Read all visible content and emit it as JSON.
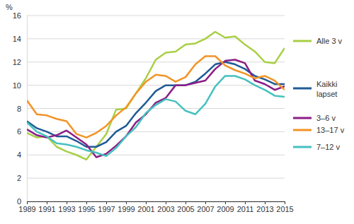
{
  "chart_data": {
    "type": "line",
    "y_label": "%",
    "x": [
      1989,
      1990,
      1991,
      1992,
      1993,
      1994,
      1995,
      1996,
      1997,
      1998,
      1999,
      2000,
      2001,
      2002,
      2003,
      2004,
      2005,
      2006,
      2007,
      2008,
      2009,
      2010,
      2011,
      2012,
      2013,
      2014,
      2015
    ],
    "xlim": [
      1989,
      2015
    ],
    "xticks": [
      1989,
      1991,
      1993,
      1995,
      1997,
      1999,
      2001,
      2003,
      2005,
      2007,
      2009,
      2011,
      2013,
      2015
    ],
    "ylim": [
      0,
      16
    ],
    "yticks": [
      0,
      2,
      4,
      6,
      8,
      10,
      12,
      14,
      16
    ],
    "grid": true,
    "legend": "right",
    "series": [
      {
        "name": "Alle 3 v",
        "color": "#a8cf45",
        "values": [
          5.9,
          5.5,
          5.6,
          4.7,
          4.3,
          4.0,
          3.6,
          4.7,
          5.8,
          7.9,
          8.0,
          9.3,
          10.6,
          12.2,
          12.8,
          12.9,
          13.5,
          13.6,
          14.0,
          14.6,
          14.1,
          14.2,
          13.5,
          12.9,
          12.0,
          11.9,
          13.2
        ]
      },
      {
        "name": "Kaikki lapset",
        "color": "#1f5a96",
        "values": [
          6.9,
          6.3,
          6.0,
          5.6,
          5.6,
          5.2,
          4.7,
          4.7,
          5.1,
          6.0,
          6.5,
          7.6,
          8.5,
          9.5,
          10.0,
          10.0,
          10.0,
          10.3,
          11.0,
          11.8,
          12.0,
          11.8,
          11.4,
          10.8,
          10.5,
          10.1,
          10.1
        ]
      },
      {
        "name": "3–6 v",
        "color": "#8c1d87",
        "values": [
          6.2,
          5.7,
          5.5,
          5.7,
          6.1,
          5.5,
          4.9,
          3.8,
          4.1,
          4.8,
          5.6,
          6.8,
          7.5,
          8.5,
          8.9,
          10.0,
          10.0,
          10.2,
          10.4,
          11.4,
          12.1,
          12.2,
          11.9,
          10.4,
          10.1,
          9.6,
          9.9
        ]
      },
      {
        "name": "13–17 v",
        "color": "#f39325",
        "values": [
          8.7,
          7.5,
          7.4,
          7.1,
          6.9,
          5.8,
          5.5,
          5.9,
          6.5,
          7.4,
          8.1,
          9.3,
          10.3,
          10.9,
          10.8,
          10.3,
          10.7,
          11.8,
          12.5,
          12.5,
          11.7,
          11.3,
          11.0,
          10.6,
          10.8,
          10.4,
          9.6
        ]
      },
      {
        "name": "7–12 v",
        "color": "#45c1bf",
        "values": [
          6.8,
          6.0,
          5.6,
          5.0,
          4.9,
          4.7,
          4.4,
          4.2,
          3.9,
          4.6,
          5.6,
          6.4,
          7.6,
          8.3,
          8.8,
          8.6,
          7.8,
          7.5,
          8.4,
          9.9,
          10.8,
          10.8,
          10.5,
          10.0,
          9.6,
          9.1,
          9.0
        ]
      }
    ]
  }
}
